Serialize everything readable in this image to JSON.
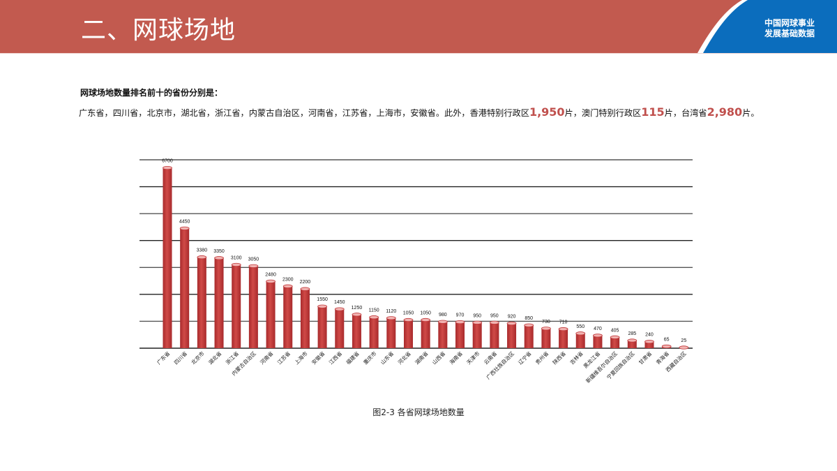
{
  "header": {
    "title": "二、网球场地",
    "badge_line1": "中国网球事业",
    "badge_line2": "发展基础数据",
    "bg_color": "#c25a4f",
    "badge_color": "#0b6dbd"
  },
  "intro": {
    "heading": "网球场地数量排名前十的省份分别是：",
    "body_prefix": "广东省，四川省，北京市，湖北省，浙江省，内蒙古自治区，河南省，江苏省，上海市，安徽省。此外，香港特别行政区",
    "hk_value": "1,950",
    "unit1": "片，澳门特别行政区",
    "macau_value": "115",
    "unit2": "片，台湾省",
    "taiwan_value": "2,980",
    "unit3": "片。",
    "highlight_color": "#c0504d"
  },
  "caption": "图2-3 各省网球场地数量",
  "chart_data": {
    "type": "bar",
    "title": "图2-3 各省网球场地数量",
    "xlabel": "",
    "ylabel": "",
    "ylim": [
      0,
      7000
    ],
    "gridlines": [
      0,
      1000,
      2000,
      3000,
      4000,
      5000,
      6000,
      7000
    ],
    "grid": true,
    "legend": null,
    "bar_color": "#c0393b",
    "categories": [
      "广东省",
      "四川省",
      "北京市",
      "湖北省",
      "浙江省",
      "内蒙古自治区",
      "河南省",
      "江苏省",
      "上海市",
      "安徽省",
      "江西省",
      "福建省",
      "重庆市",
      "山东省",
      "河北省",
      "湖南省",
      "山西省",
      "海南省",
      "天津市",
      "云南省",
      "广西壮族自治区",
      "辽宁省",
      "贵州省",
      "陕西省",
      "吉林省",
      "黑龙江省",
      "新疆维吾尔自治区",
      "宁夏回族自治区",
      "甘肃省",
      "青海省",
      "西藏自治区"
    ],
    "values": [
      6700,
      4450,
      3380,
      3350,
      3100,
      3050,
      2480,
      2300,
      2200,
      1550,
      1450,
      1250,
      1150,
      1120,
      1050,
      1050,
      980,
      970,
      950,
      950,
      920,
      850,
      730,
      710,
      550,
      470,
      405,
      285,
      240,
      65,
      25
    ]
  }
}
